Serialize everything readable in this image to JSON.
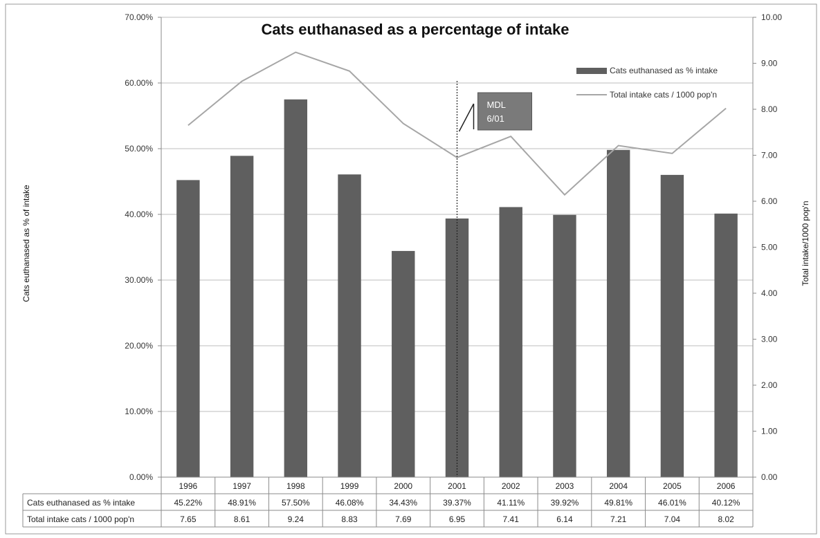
{
  "chart_data": {
    "type": "bar",
    "title": "Cats euthanased as a percentage of intake",
    "ylabel": "Cats euthanased as % of intake",
    "y2label": "Total intake/1000 pop'n",
    "categories": [
      "1996",
      "1997",
      "1998",
      "1999",
      "2000",
      "2001",
      "2002",
      "2003",
      "2004",
      "2005",
      "2006"
    ],
    "series": [
      {
        "name": "Cats euthanased as % intake",
        "type": "bar",
        "axis": "left",
        "color": "#5f5f5f",
        "values": [
          45.22,
          48.91,
          57.5,
          46.08,
          34.43,
          39.37,
          41.11,
          39.92,
          49.81,
          46.01,
          40.12
        ],
        "labels": [
          "45.22%",
          "48.91%",
          "57.50%",
          "46.08%",
          "34.43%",
          "39.37%",
          "41.11%",
          "39.92%",
          "49.81%",
          "46.01%",
          "40.12%"
        ]
      },
      {
        "name": "Total intake cats / 1000 pop'n",
        "type": "line",
        "axis": "right",
        "color": "#a6a6a6",
        "values": [
          7.65,
          8.61,
          9.24,
          8.83,
          7.69,
          6.95,
          7.41,
          6.14,
          7.21,
          7.04,
          8.02
        ],
        "labels": [
          "7.65",
          "8.61",
          "9.24",
          "8.83",
          "7.69",
          "6.95",
          "7.41",
          "6.14",
          "7.21",
          "7.04",
          "8.02"
        ]
      }
    ],
    "ylim": [
      0,
      70
    ],
    "y2lim": [
      0,
      10
    ],
    "yticks": [
      "0.00%",
      "10.00%",
      "20.00%",
      "30.00%",
      "40.00%",
      "50.00%",
      "60.00%",
      "70.00%"
    ],
    "y2ticks": [
      "0.00",
      "1.00",
      "2.00",
      "3.00",
      "4.00",
      "5.00",
      "6.00",
      "7.00",
      "8.00",
      "9.00",
      "10.00"
    ],
    "grid": true,
    "legend_position": "top-right",
    "annotation": {
      "text": [
        "MDL",
        "6/01"
      ],
      "category": "2001"
    },
    "data_table": true
  }
}
